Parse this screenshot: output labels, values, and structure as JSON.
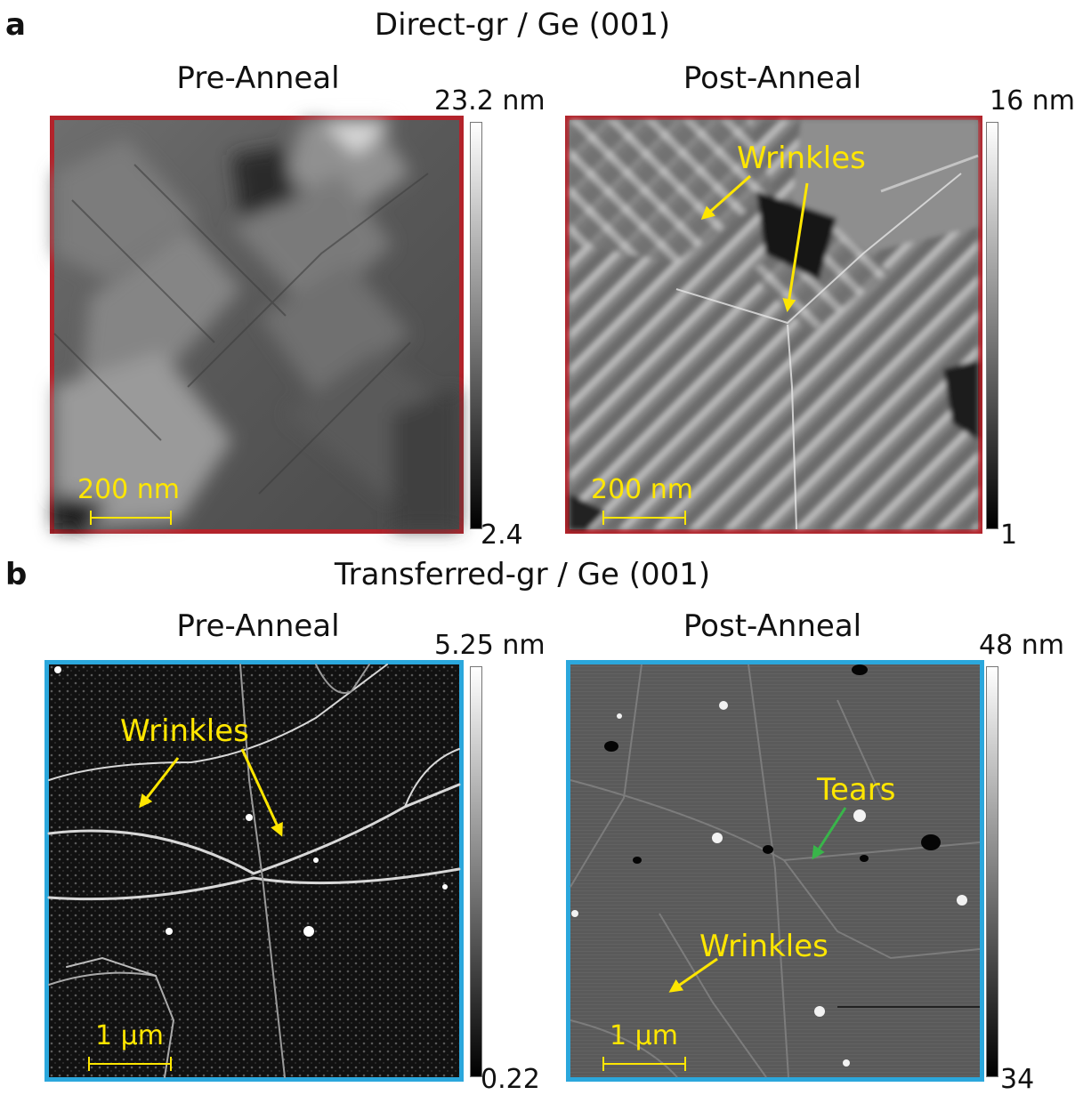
{
  "panels": {
    "a": {
      "letter": "a",
      "row_title": "Direct-gr / Ge (001)",
      "frame_color": "#b3232b",
      "pre": {
        "title": "Pre-Anneal",
        "cb_top": "23.2 nm",
        "cb_bottom": "2.4",
        "scalebar": "200 nm"
      },
      "post": {
        "title": "Post-Anneal",
        "cb_top": "16 nm",
        "cb_bottom": "1",
        "scalebar": "200 nm",
        "annotation": "Wrinkles"
      }
    },
    "b": {
      "letter": "b",
      "row_title": "Transferred-gr / Ge (001)",
      "frame_color": "#2ba7dc",
      "pre": {
        "title": "Pre-Anneal",
        "cb_top": "5.25 nm",
        "cb_bottom": "0.22",
        "scalebar": "1 µm",
        "annotation": "Wrinkles"
      },
      "post": {
        "title": "Post-Anneal",
        "cb_top": "48 nm",
        "cb_bottom": "34",
        "scalebar": "1 µm",
        "annotation_tears": "Tears",
        "annotation_wrinkles": "Wrinkles"
      }
    }
  },
  "colors": {
    "annotation_yellow": "#ffe600",
    "annotation_green": "#39b54a"
  }
}
